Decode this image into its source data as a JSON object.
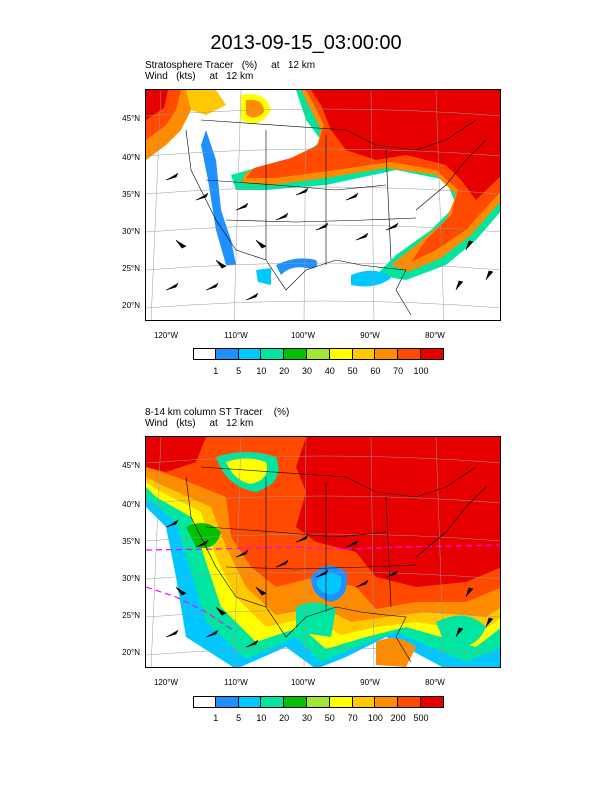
{
  "main_title": "2013-09-15_03:00:00",
  "panels": [
    {
      "title_line1": "Stratosphere Tracer   (%)     at   12 km",
      "title_line2": "Wind   (kts)     at   12 km",
      "lat_labels": [
        "45°N",
        "40°N",
        "35°N",
        "30°N",
        "25°N",
        "20°N"
      ],
      "lon_labels": [
        "120°W",
        "110°W",
        "100°W",
        "90°W",
        "80°W"
      ],
      "colorbar_labels": [
        "1",
        "5",
        "10",
        "20",
        "30",
        "40",
        "50",
        "60",
        "70",
        "100"
      ],
      "colorbar_colors": [
        "#ffffff",
        "#1e90ff",
        "#00c8ff",
        "#00e6a0",
        "#00c000",
        "#a0e632",
        "#ffff00",
        "#ffc800",
        "#ff8c00",
        "#ff4a00",
        "#e60000"
      ]
    },
    {
      "title_line1": "8-14 km column ST Tracer    (%)",
      "title_line2": "Wind   (kts)     at   12 km",
      "lat_labels": [
        "45°N",
        "40°N",
        "35°N",
        "30°N",
        "25°N",
        "20°N"
      ],
      "lon_labels": [
        "120°W",
        "110°W",
        "100°W",
        "90°W",
        "80°W"
      ],
      "colorbar_labels": [
        "1",
        "5",
        "10",
        "20",
        "30",
        "50",
        "70",
        "100",
        "200",
        "500"
      ],
      "colorbar_colors": [
        "#ffffff",
        "#1e90ff",
        "#00c8ff",
        "#00e6a0",
        "#00c000",
        "#a0e632",
        "#ffff00",
        "#ffc800",
        "#ff8c00",
        "#ff4a00",
        "#e60000"
      ]
    }
  ]
}
